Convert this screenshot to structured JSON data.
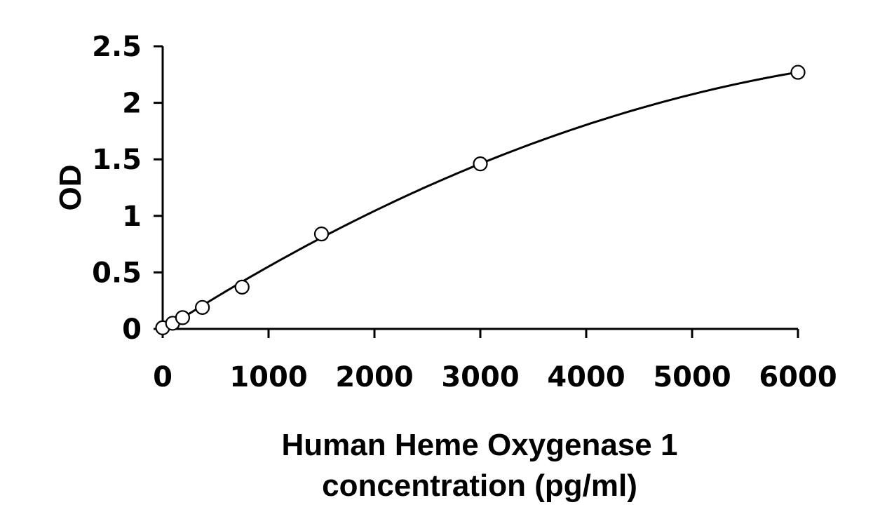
{
  "chart_data": {
    "type": "scatter",
    "title": "",
    "xlabel_lines": [
      "Human Heme Oxygenase 1",
      "concentration (pg/ml)"
    ],
    "ylabel": "OD",
    "xlim": [
      0,
      6000
    ],
    "ylim": [
      0,
      2.5
    ],
    "x_ticks": [
      0,
      1000,
      2000,
      3000,
      4000,
      5000,
      6000
    ],
    "x_tick_labels": [
      "0",
      "1000",
      "2000",
      "3000",
      "4000",
      "5000",
      "6000"
    ],
    "y_ticks": [
      0,
      0.5,
      1,
      1.5,
      2,
      2.5
    ],
    "y_tick_labels": [
      "0",
      "0.5",
      "1",
      "1.5",
      "2",
      "2.5"
    ],
    "grid": false,
    "legend": false,
    "series": [
      {
        "x": [
          0,
          94,
          188,
          375,
          750,
          1500,
          3000,
          6000
        ],
        "y": [
          0.01,
          0.05,
          0.1,
          0.19,
          0.37,
          0.84,
          1.46,
          2.27
        ],
        "marker": "open-circle",
        "trendline": true
      }
    ]
  }
}
